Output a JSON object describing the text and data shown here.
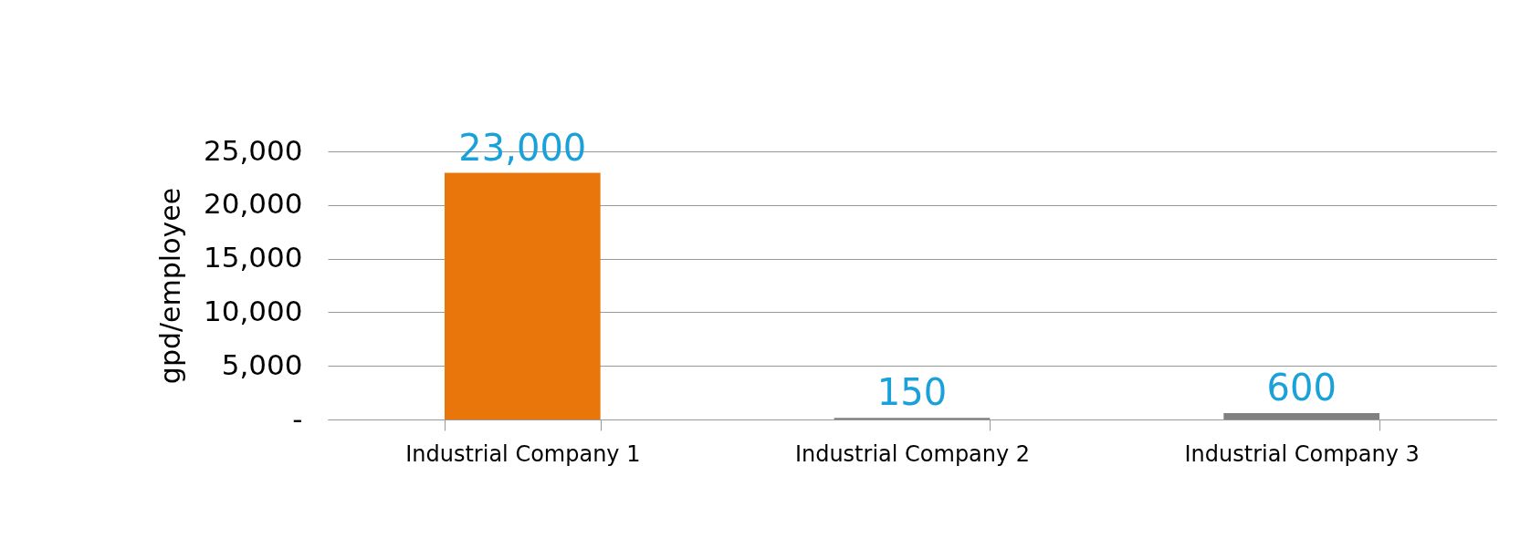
{
  "chart_data": {
    "type": "bar",
    "ylabel": "gpd/employee",
    "categories": [
      "Industrial Company 1",
      "Industrial Company 2",
      "Industrial Company 3"
    ],
    "values": [
      23000,
      150,
      600
    ],
    "colors": [
      "#e8760a",
      "#808080",
      "#808080"
    ],
    "value_labels": [
      "23,000",
      "150",
      "600"
    ],
    "ylim": [
      0,
      25000
    ],
    "yticks": [
      {
        "value": 0,
        "label": "-"
      },
      {
        "value": 5000,
        "label": "5,000"
      },
      {
        "value": 10000,
        "label": "10,000"
      },
      {
        "value": 15000,
        "label": "15,000"
      },
      {
        "value": 20000,
        "label": "20,000"
      },
      {
        "value": 25000,
        "label": "25,000"
      }
    ],
    "grid": "y"
  }
}
